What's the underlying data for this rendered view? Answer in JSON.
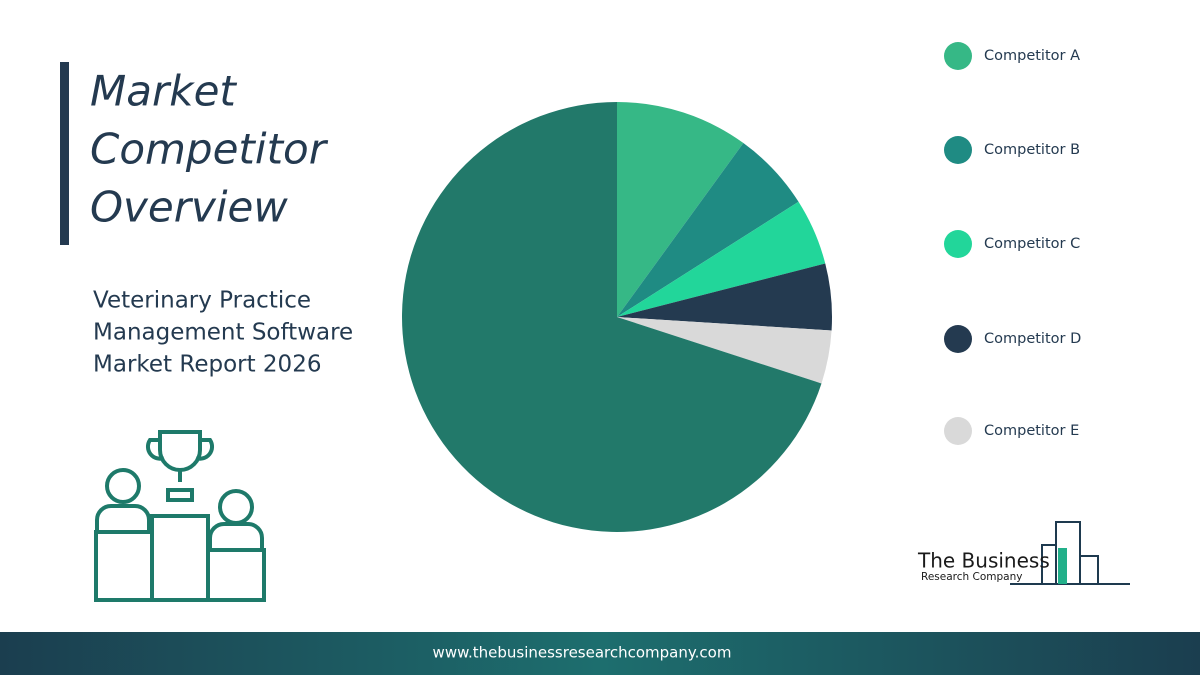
{
  "chart_data": {
    "type": "pie",
    "title": [
      "Market",
      "Competitor",
      "Overview"
    ],
    "subtitle": [
      "Veterinary Practice",
      "Management Software",
      "Market Report 2026"
    ],
    "categories": [
      "Competitor A",
      "Competitor B",
      "Competitor C",
      "Competitor D",
      "Competitor E",
      null
    ],
    "values": [
      10,
      6,
      5,
      5,
      4,
      70
    ],
    "colors": [
      "#36b886",
      "#1f8b83",
      "#22d69a",
      "#243a50",
      "#d9d9d9",
      "#22796a"
    ]
  },
  "logo": {
    "line1": "The Business",
    "line2": "Research Company"
  },
  "footer": "www.thebusinessresearchcompany.com"
}
